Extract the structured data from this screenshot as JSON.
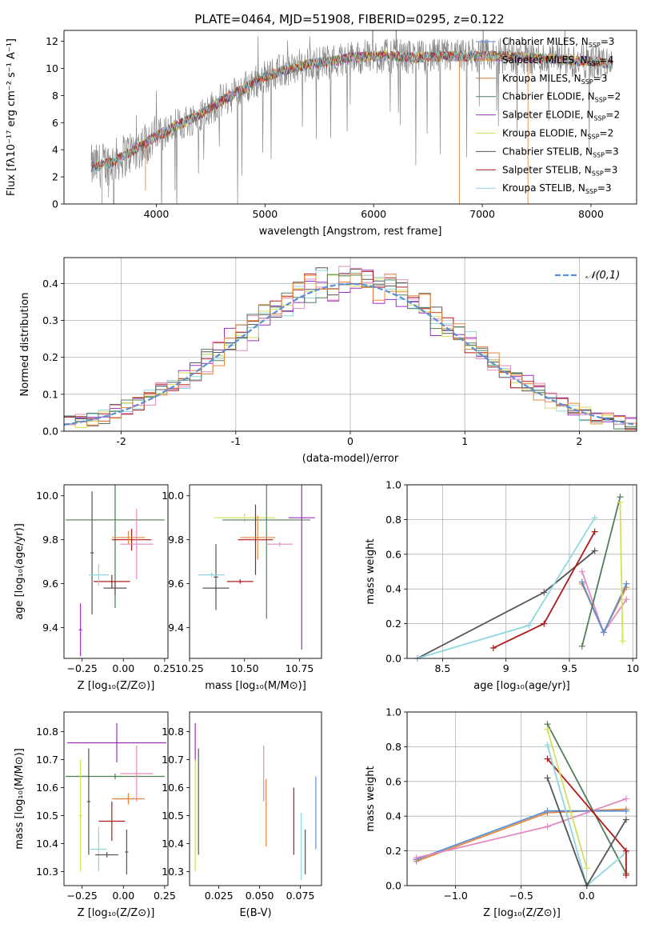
{
  "title": "PLATE=0464, MJD=51908, FIBERID=0295, z=0.122",
  "colors": [
    "#5a8fd6",
    "#e8883a",
    "#d97d3a",
    "#4f7f5a",
    "#9b2fbf",
    "#d4df5a",
    "#555555",
    "#b01818",
    "#8fd6e0",
    "#e38bc0",
    "#999999"
  ],
  "chart_data": [
    {
      "type": "line",
      "id": "spectrum",
      "xlabel": "wavelength [Angstrom, rest frame]",
      "ylabel": "Flux [fλ10⁻¹⁷ erg cm⁻² s⁻¹ A⁻¹]",
      "xlim": [
        3150,
        8420
      ],
      "ylim": [
        0,
        12.8
      ],
      "xticks": [
        4000,
        5000,
        6000,
        7000,
        8000
      ],
      "yticks": [
        0,
        2,
        4,
        6,
        8,
        10,
        12
      ],
      "legend_position": "top-right",
      "series": [
        {
          "name": "Chabrier MILES, N_SSP=3",
          "color": "#5a8fd6"
        },
        {
          "name": "Salpeter MILES, N_SSP=4",
          "color": "#e8883a"
        },
        {
          "name": "Kroupa MILES, N_SSP=3",
          "color": "#d97d3a"
        },
        {
          "name": "Chabrier ELODIE, N_SSP=2",
          "color": "#4f7f5a"
        },
        {
          "name": "Salpeter ELODIE, N_SSP=2",
          "color": "#9b2fbf"
        },
        {
          "name": "Kroupa ELODIE, N_SSP=2",
          "color": "#d4df5a"
        },
        {
          "name": "Chabrier STELIB, N_SSP=3",
          "color": "#555555"
        },
        {
          "name": "Salpeter STELIB, N_SSP=3",
          "color": "#b01818"
        },
        {
          "name": "Kroupa STELIB, N_SSP=3",
          "color": "#8fd6e0"
        }
      ],
      "continuum": {
        "x": [
          3400,
          3600,
          3800,
          4000,
          4200,
          4400,
          4600,
          4800,
          5000,
          5200,
          5400,
          5600,
          5800,
          6000,
          6200,
          6400,
          6600,
          6800,
          7000,
          7200,
          7400,
          7600,
          7800,
          8000,
          8200
        ],
        "y": [
          2.7,
          3.1,
          4.0,
          5.0,
          5.8,
          6.6,
          7.6,
          8.5,
          9.4,
          9.9,
          10.3,
          10.5,
          10.8,
          10.9,
          10.9,
          10.8,
          10.9,
          10.9,
          10.9,
          10.9,
          10.8,
          10.7,
          10.6,
          10.5,
          10.3
        ]
      }
    },
    {
      "type": "histogram",
      "id": "residuals",
      "xlabel": "(data-model)/error",
      "ylabel": "Normed distribution",
      "xlim": [
        -2.5,
        2.5
      ],
      "ylim": [
        0,
        0.47
      ],
      "xticks": [
        -2,
        -1,
        0,
        1,
        2
      ],
      "yticks": [
        0.0,
        0.1,
        0.2,
        0.3,
        0.4
      ],
      "grid": true,
      "legend": "𝒩(0,1)",
      "legend_position": "top-right",
      "bin_width": 0.1,
      "bins_from": -2.5
    },
    {
      "type": "scatter",
      "id": "z-age",
      "xlabel": "Z [log₁₀(Z/Z⊙)]",
      "ylabel": "age  [log₁₀(age/yr)]",
      "xlim": [
        -0.36,
        0.27
      ],
      "ylim": [
        9.26,
        10.05
      ],
      "xticks": [
        -0.25,
        0.0,
        0.25
      ],
      "xticklabels": [
        "−0.25",
        "0.00",
        "0.25"
      ],
      "yticks": [
        9.4,
        9.6,
        9.8,
        10.0
      ],
      "points": [
        {
          "color": "#d4df5a",
          "x": -0.05,
          "y": 9.89,
          "xerr": 0.3,
          "yerr": 0.4
        },
        {
          "color": "#4f7f5a",
          "x": -0.05,
          "y": 9.89,
          "xerr": 0.3,
          "yerr": 0.4
        },
        {
          "color": "#9b2fbf",
          "x": -0.26,
          "y": 9.39,
          "xerr": 0.01,
          "yerr": 0.12
        },
        {
          "color": "#555555",
          "x": -0.19,
          "y": 9.74,
          "xerr": 0.01,
          "yerr": 0.28
        },
        {
          "color": "#b01818",
          "x": -0.07,
          "y": 9.61,
          "xerr": 0.11,
          "yerr": 0.03
        },
        {
          "color": "#8fd6e0",
          "x": -0.15,
          "y": 9.64,
          "xerr": 0.06,
          "yerr": 0.05
        },
        {
          "color": "#555555",
          "x": -0.05,
          "y": 9.58,
          "xerr": 0.07,
          "yerr": 0.03
        },
        {
          "color": "#b01818",
          "x": 0.05,
          "y": 9.8,
          "xerr": 0.12,
          "yerr": 0.05
        },
        {
          "color": "#e38bc0",
          "x": 0.08,
          "y": 9.78,
          "xerr": 0.1,
          "yerr": 0.16
        },
        {
          "color": "#e8883a",
          "x": 0.03,
          "y": 9.81,
          "xerr": 0.1,
          "yerr": 0.03
        }
      ]
    },
    {
      "type": "scatter",
      "id": "mass-age",
      "xlabel": "mass [log₁₀(M/M⊙)]",
      "xlim": [
        10.25,
        10.85
      ],
      "ylim": [
        9.26,
        10.05
      ],
      "xticks": [
        10.25,
        10.5,
        10.75
      ],
      "xticklabels": [
        "10.25",
        "10.50",
        "10.75"
      ],
      "yticks": [
        9.4,
        9.6,
        9.8,
        10.0
      ],
      "points": [
        {
          "color": "#d4df5a",
          "x": 10.5,
          "y": 9.9,
          "xerr": 0.14,
          "yerr": 0.02
        },
        {
          "color": "#4f7f5a",
          "x": 10.6,
          "y": 9.89,
          "xerr": 0.2,
          "yerr": 0.45
        },
        {
          "color": "#9b2fbf",
          "x": 10.76,
          "y": 9.9,
          "xerr": 0.06,
          "yerr": 0.6
        },
        {
          "color": "#555555",
          "x": 10.37,
          "y": 9.63,
          "xerr": 0.01,
          "yerr": 0.15
        },
        {
          "color": "#8fd6e0",
          "x": 10.35,
          "y": 9.64,
          "xerr": 0.06,
          "yerr": 0.01
        },
        {
          "color": "#555555",
          "x": 10.37,
          "y": 9.58,
          "xerr": 0.06,
          "yerr": 0.01
        },
        {
          "color": "#b01818",
          "x": 10.48,
          "y": 9.61,
          "xerr": 0.06,
          "yerr": 0.01
        },
        {
          "color": "#b01818",
          "x": 10.55,
          "y": 9.8,
          "xerr": 0.08,
          "yerr": 0.16
        },
        {
          "color": "#e8883a",
          "x": 10.56,
          "y": 9.81,
          "xerr": 0.08,
          "yerr": 0.1
        },
        {
          "color": "#e38bc0",
          "x": 10.66,
          "y": 9.78,
          "xerr": 0.06,
          "yerr": 0.01
        }
      ]
    },
    {
      "type": "line",
      "id": "age-weight",
      "xlabel": "age  [log₁₀(age/yr)]",
      "ylabel": "mass weight",
      "xlim": [
        8.22,
        10.03
      ],
      "ylim": [
        0.0,
        1.0
      ],
      "xticks": [
        8.5,
        9.0,
        9.5,
        10.0
      ],
      "yticks": [
        0.0,
        0.2,
        0.4,
        0.6,
        0.8,
        1.0
      ],
      "grid": true,
      "series": [
        {
          "color": "#555555",
          "x": [
            8.3,
            9.3,
            9.7
          ],
          "y": [
            0.0,
            0.38,
            0.62
          ]
        },
        {
          "color": "#8fd6e0",
          "x": [
            8.3,
            9.18,
            9.7
          ],
          "y": [
            0.0,
            0.19,
            0.81
          ]
        },
        {
          "color": "#b01818",
          "x": [
            8.9,
            9.3,
            9.7
          ],
          "y": [
            0.06,
            0.2,
            0.73
          ]
        },
        {
          "color": "#e38bc0",
          "x": [
            9.6,
            9.77,
            9.95
          ],
          "y": [
            0.5,
            0.15,
            0.34
          ]
        },
        {
          "color": "#e8883a",
          "x": [
            9.6,
            9.77,
            9.95
          ],
          "y": [
            0.43,
            0.15,
            0.41
          ]
        },
        {
          "color": "#5a8fd6",
          "x": [
            9.6,
            9.77,
            9.95
          ],
          "y": [
            0.44,
            0.15,
            0.43
          ]
        },
        {
          "color": "#4f7f5a",
          "x": [
            9.6,
            9.9
          ],
          "y": [
            0.07,
            0.93
          ]
        },
        {
          "color": "#d4df5a",
          "x": [
            9.9,
            9.92
          ],
          "y": [
            0.9,
            0.1
          ]
        }
      ]
    },
    {
      "type": "scatter",
      "id": "z-mass",
      "xlabel": "Z [log₁₀(Z/Z⊙)]",
      "ylabel": "mass [log₁₀(M/M⊙)]",
      "xlim": [
        -0.36,
        0.27
      ],
      "ylim": [
        10.25,
        10.87
      ],
      "xticks": [
        -0.25,
        0.0,
        0.25
      ],
      "xticklabels": [
        "−0.25",
        "0.00",
        "0.25"
      ],
      "yticks": [
        10.3,
        10.4,
        10.5,
        10.6,
        10.7,
        10.8
      ],
      "points": [
        {
          "color": "#9b2fbf",
          "x": -0.04,
          "y": 10.76,
          "xerr": 0.3,
          "yerr": 0.07
        },
        {
          "color": "#d4df5a",
          "x": -0.05,
          "y": 10.64,
          "xerr": 0.3,
          "yerr": 0.01
        },
        {
          "color": "#4f7f5a",
          "x": -0.05,
          "y": 10.64,
          "xerr": 0.3,
          "yerr": 0.01
        },
        {
          "color": "#d4df5a",
          "x": -0.26,
          "y": 10.5,
          "xerr": 0.01,
          "yerr": 0.2
        },
        {
          "color": "#555555",
          "x": -0.21,
          "y": 10.55,
          "xerr": 0.01,
          "yerr": 0.19
        },
        {
          "color": "#8fd6e0",
          "x": -0.15,
          "y": 10.38,
          "xerr": 0.05,
          "yerr": 0.08
        },
        {
          "color": "#555555",
          "x": -0.1,
          "y": 10.36,
          "xerr": 0.07,
          "yerr": 0.01
        },
        {
          "color": "#b01818",
          "x": -0.07,
          "y": 10.48,
          "xerr": 0.08,
          "yerr": 0.07
        },
        {
          "color": "#e38bc0",
          "x": 0.08,
          "y": 10.65,
          "xerr": 0.1,
          "yerr": 0.1
        },
        {
          "color": "#5a8fd6",
          "x": 0.03,
          "y": 10.56,
          "xerr": 0.08,
          "yerr": 0.02
        },
        {
          "color": "#e8883a",
          "x": 0.03,
          "y": 10.56,
          "xerr": 0.1,
          "yerr": 0.02
        },
        {
          "color": "#555555",
          "x": 0.02,
          "y": 10.37,
          "xerr": 0.01,
          "yerr": 0.08
        }
      ]
    },
    {
      "type": "errorbar",
      "id": "ebv-mass",
      "xlabel": "E(B-V)",
      "xlim": [
        0.007,
        0.088
      ],
      "ylim": [
        10.25,
        10.87
      ],
      "xticks": [
        0.025,
        0.05,
        0.075
      ],
      "xticklabels": [
        "0.025",
        "0.050",
        "0.075"
      ],
      "yticks": [
        10.3,
        10.4,
        10.5,
        10.6,
        10.7,
        10.8
      ],
      "points": [
        {
          "color": "#9b2fbf",
          "x": 0.0105,
          "y": 10.76,
          "yerr": 0.07
        },
        {
          "color": "#d4df5a",
          "x": 0.0105,
          "y": 10.5,
          "yerr": 0.2
        },
        {
          "color": "#555555",
          "x": 0.0125,
          "y": 10.55,
          "yerr": 0.19
        },
        {
          "color": "#e38bc0",
          "x": 0.0525,
          "y": 10.65,
          "yerr": 0.1
        },
        {
          "color": "#e8883a",
          "x": 0.054,
          "y": 10.51,
          "yerr": 0.12
        },
        {
          "color": "#b01818",
          "x": 0.071,
          "y": 10.48,
          "yerr": 0.12
        },
        {
          "color": "#8fd6e0",
          "x": 0.0755,
          "y": 10.39,
          "yerr": 0.12
        },
        {
          "color": "#555555",
          "x": 0.078,
          "y": 10.37,
          "yerr": 0.08
        },
        {
          "color": "#5a8fd6",
          "x": 0.0845,
          "y": 10.51,
          "yerr": 0.13
        }
      ]
    },
    {
      "type": "line",
      "id": "z-weight",
      "xlabel": "Z [log₁₀(Z/Z⊙)]",
      "ylabel": "mass weight",
      "xlim": [
        -1.37,
        0.38
      ],
      "ylim": [
        0.0,
        1.0
      ],
      "xticks": [
        -1.0,
        -0.5,
        0.0
      ],
      "xticklabels": [
        "−1.0",
        "−0.5",
        "0.0"
      ],
      "yticks": [
        0.0,
        0.2,
        0.4,
        0.6,
        0.8,
        1.0
      ],
      "grid": true,
      "series": [
        {
          "color": "#e8883a",
          "x": [
            -1.3,
            -0.3,
            0.0,
            0.3
          ],
          "y": [
            0.14,
            0.42,
            0.43,
            0.44
          ]
        },
        {
          "color": "#5a8fd6",
          "x": [
            -1.3,
            -0.3,
            0.3
          ],
          "y": [
            0.15,
            0.43,
            0.43
          ]
        },
        {
          "color": "#e38bc0",
          "x": [
            -1.3,
            -0.3,
            0.3
          ],
          "y": [
            0.16,
            0.34,
            0.5
          ]
        },
        {
          "color": "#4f7f5a",
          "x": [
            -0.3,
            0.3
          ],
          "y": [
            0.93,
            0.07
          ]
        },
        {
          "color": "#b01818",
          "x": [
            -0.3,
            0.3
          ],
          "y": [
            0.73,
            0.2
          ]
        },
        {
          "color": "#d4df5a",
          "x": [
            -0.3,
            0.0
          ],
          "y": [
            0.9,
            0.1
          ]
        },
        {
          "color": "#8fd6e0",
          "x": [
            -0.3,
            0.0,
            0.3
          ],
          "y": [
            0.81,
            0.0,
            0.19
          ]
        },
        {
          "color": "#555555",
          "x": [
            -0.3,
            0.0,
            0.3
          ],
          "y": [
            0.62,
            0.0,
            0.38
          ]
        },
        {
          "color": "#b01818",
          "x": [
            0.3,
            0.3
          ],
          "y": [
            0.2,
            0.06
          ]
        }
      ]
    }
  ]
}
